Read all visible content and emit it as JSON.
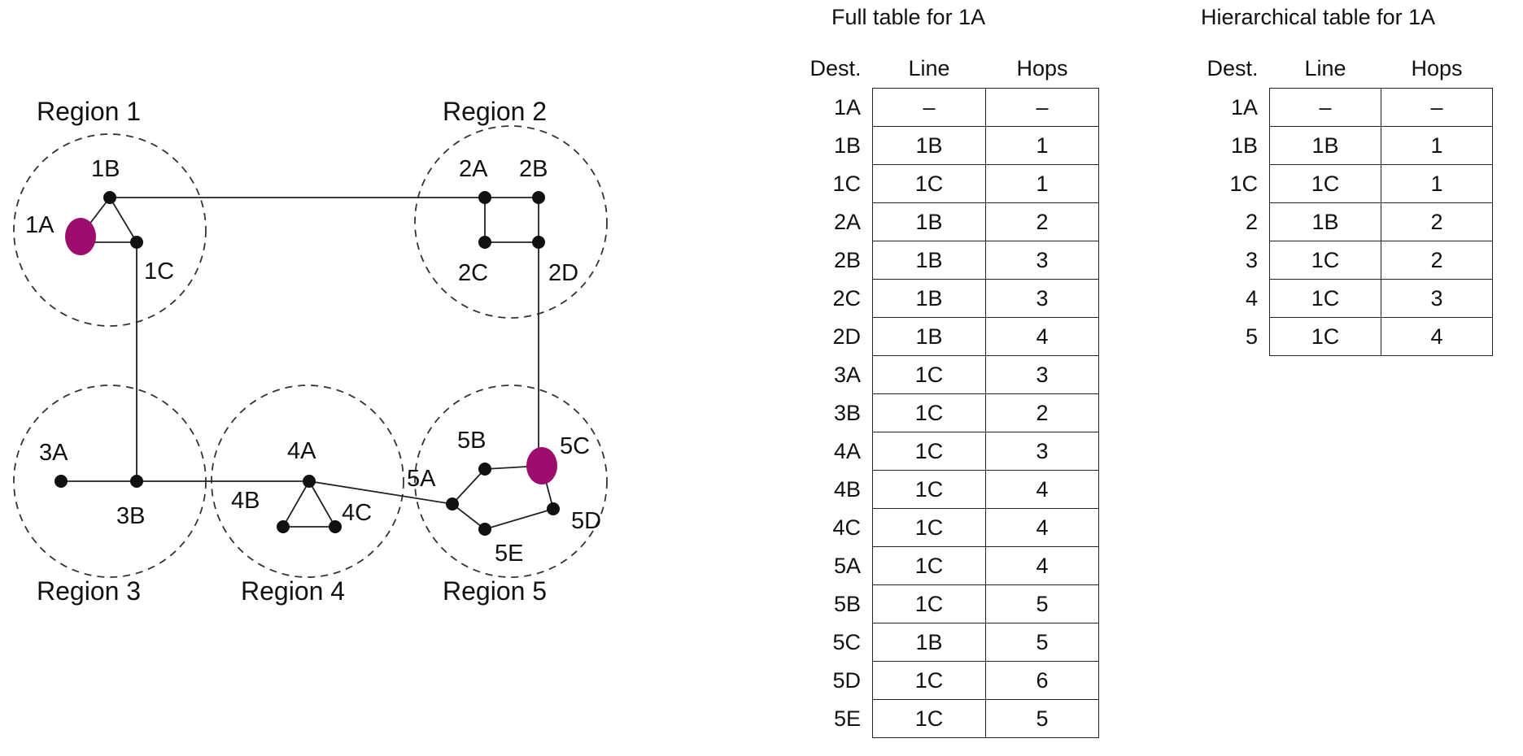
{
  "regions": [
    "Region 1",
    "Region 2",
    "Region 3",
    "Region 4",
    "Region 5"
  ],
  "nodes": [
    "1A",
    "1B",
    "1C",
    "2A",
    "2B",
    "2C",
    "2D",
    "3A",
    "3B",
    "4A",
    "4B",
    "4C",
    "5A",
    "5B",
    "5C",
    "5D",
    "5E"
  ],
  "highlight_color": "#9c0d6e",
  "full_table": {
    "title": "Full table for 1A",
    "headers": [
      "Dest.",
      "Line",
      "Hops"
    ],
    "rows": [
      [
        "1A",
        "–",
        "–"
      ],
      [
        "1B",
        "1B",
        "1"
      ],
      [
        "1C",
        "1C",
        "1"
      ],
      [
        "2A",
        "1B",
        "2"
      ],
      [
        "2B",
        "1B",
        "3"
      ],
      [
        "2C",
        "1B",
        "3"
      ],
      [
        "2D",
        "1B",
        "4"
      ],
      [
        "3A",
        "1C",
        "3"
      ],
      [
        "3B",
        "1C",
        "2"
      ],
      [
        "4A",
        "1C",
        "3"
      ],
      [
        "4B",
        "1C",
        "4"
      ],
      [
        "4C",
        "1C",
        "4"
      ],
      [
        "5A",
        "1C",
        "4"
      ],
      [
        "5B",
        "1C",
        "5"
      ],
      [
        "5C",
        "1B",
        "5"
      ],
      [
        "5D",
        "1C",
        "6"
      ],
      [
        "5E",
        "1C",
        "5"
      ]
    ]
  },
  "hier_table": {
    "title": "Hierarchical table for 1A",
    "headers": [
      "Dest.",
      "Line",
      "Hops"
    ],
    "rows": [
      [
        "1A",
        "–",
        "–"
      ],
      [
        "1B",
        "1B",
        "1"
      ],
      [
        "1C",
        "1C",
        "1"
      ],
      [
        "2",
        "1B",
        "2"
      ],
      [
        "3",
        "1C",
        "2"
      ],
      [
        "4",
        "1C",
        "3"
      ],
      [
        "5",
        "1C",
        "4"
      ]
    ]
  }
}
